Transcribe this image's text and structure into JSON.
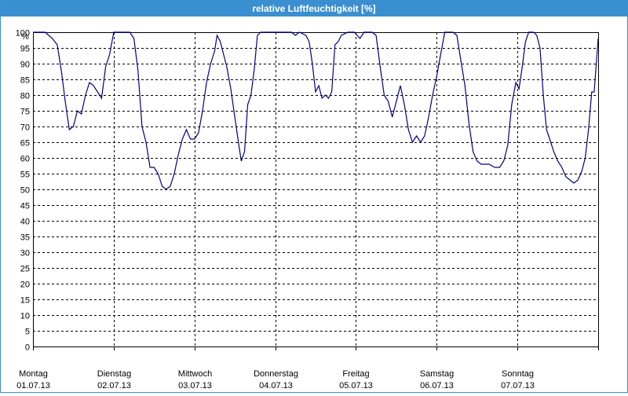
{
  "window": {
    "title": "relative Luftfeuchtigkeit [%]"
  },
  "colors": {
    "titlebar": "#3a8fd0",
    "line": "#00008b",
    "grid": "#000000"
  },
  "chart_data": {
    "type": "line",
    "title": "relative Luftfeuchtigkeit [%]",
    "ylabel": "%",
    "xlabel": "",
    "ylim": [
      0,
      100
    ],
    "y_ticks": [
      0,
      5,
      10,
      15,
      20,
      25,
      30,
      35,
      40,
      45,
      50,
      55,
      60,
      65,
      70,
      75,
      80,
      85,
      90,
      95,
      100
    ],
    "xlim_days": [
      0,
      7
    ],
    "x_tick_labels": [
      {
        "day": "Montag",
        "date": "01.07.13"
      },
      {
        "day": "Dienstag",
        "date": "02.07.13"
      },
      {
        "day": "Mittwoch",
        "date": "03.07.13"
      },
      {
        "day": "Donnerstag",
        "date": "04.07.13"
      },
      {
        "day": "Freitag",
        "date": "05.07.13"
      },
      {
        "day": "Samstag",
        "date": "06.07.13"
      },
      {
        "day": "Sonntag",
        "date": "07.07.13"
      }
    ],
    "grid": true,
    "series": [
      {
        "points": [
          [
            0.0,
            100
          ],
          [
            0.15,
            100
          ],
          [
            0.24,
            98
          ],
          [
            0.3,
            96
          ],
          [
            0.35,
            88
          ],
          [
            0.4,
            78
          ],
          [
            0.45,
            69
          ],
          [
            0.5,
            70
          ],
          [
            0.55,
            75
          ],
          [
            0.6,
            74
          ],
          [
            0.65,
            80
          ],
          [
            0.7,
            84
          ],
          [
            0.75,
            83
          ],
          [
            0.8,
            81
          ],
          [
            0.85,
            79
          ],
          [
            0.9,
            89
          ],
          [
            0.95,
            93
          ],
          [
            1.0,
            100
          ],
          [
            1.1,
            100
          ],
          [
            1.2,
            100
          ],
          [
            1.25,
            98
          ],
          [
            1.3,
            88
          ],
          [
            1.35,
            70
          ],
          [
            1.4,
            65
          ],
          [
            1.45,
            57
          ],
          [
            1.5,
            57
          ],
          [
            1.55,
            55
          ],
          [
            1.6,
            51
          ],
          [
            1.65,
            50
          ],
          [
            1.7,
            51
          ],
          [
            1.75,
            55
          ],
          [
            1.8,
            61
          ],
          [
            1.85,
            66
          ],
          [
            1.9,
            69
          ],
          [
            1.95,
            66
          ],
          [
            2.0,
            66
          ],
          [
            2.05,
            68
          ],
          [
            2.1,
            75
          ],
          [
            2.15,
            84
          ],
          [
            2.2,
            90
          ],
          [
            2.25,
            94
          ],
          [
            2.28,
            99
          ],
          [
            2.32,
            97
          ],
          [
            2.4,
            89
          ],
          [
            2.45,
            82
          ],
          [
            2.5,
            73
          ],
          [
            2.55,
            64
          ],
          [
            2.58,
            59
          ],
          [
            2.62,
            62
          ],
          [
            2.66,
            77
          ],
          [
            2.7,
            80
          ],
          [
            2.74,
            88
          ],
          [
            2.78,
            99
          ],
          [
            2.82,
            100
          ],
          [
            2.9,
            100
          ],
          [
            3.0,
            100
          ],
          [
            3.1,
            100
          ],
          [
            3.2,
            100
          ],
          [
            3.25,
            99
          ],
          [
            3.3,
            100
          ],
          [
            3.38,
            99
          ],
          [
            3.42,
            97
          ],
          [
            3.46,
            90
          ],
          [
            3.5,
            81
          ],
          [
            3.54,
            83
          ],
          [
            3.58,
            79
          ],
          [
            3.62,
            80
          ],
          [
            3.66,
            79
          ],
          [
            3.7,
            81
          ],
          [
            3.74,
            96
          ],
          [
            3.78,
            97
          ],
          [
            3.82,
            99
          ],
          [
            3.9,
            100
          ],
          [
            3.98,
            100
          ],
          [
            4.05,
            98
          ],
          [
            4.1,
            100
          ],
          [
            4.2,
            100
          ],
          [
            4.25,
            99
          ],
          [
            4.3,
            89
          ],
          [
            4.35,
            80
          ],
          [
            4.4,
            78
          ],
          [
            4.45,
            73
          ],
          [
            4.5,
            78
          ],
          [
            4.55,
            83
          ],
          [
            4.6,
            77
          ],
          [
            4.65,
            69
          ],
          [
            4.7,
            65
          ],
          [
            4.75,
            67
          ],
          [
            4.8,
            65
          ],
          [
            4.85,
            67
          ],
          [
            4.9,
            73
          ],
          [
            4.95,
            80
          ],
          [
            5.0,
            86
          ],
          [
            5.05,
            93
          ],
          [
            5.1,
            100
          ],
          [
            5.2,
            100
          ],
          [
            5.25,
            99
          ],
          [
            5.3,
            91
          ],
          [
            5.35,
            83
          ],
          [
            5.4,
            71
          ],
          [
            5.45,
            62
          ],
          [
            5.5,
            59
          ],
          [
            5.55,
            58
          ],
          [
            5.65,
            58
          ],
          [
            5.72,
            57
          ],
          [
            5.78,
            57
          ],
          [
            5.83,
            59
          ],
          [
            5.88,
            64
          ],
          [
            5.93,
            77
          ],
          [
            5.98,
            84
          ],
          [
            6.02,
            82
          ],
          [
            6.06,
            89
          ],
          [
            6.1,
            97
          ],
          [
            6.14,
            100
          ],
          [
            6.2,
            100
          ],
          [
            6.24,
            99
          ],
          [
            6.28,
            95
          ],
          [
            6.32,
            80
          ],
          [
            6.36,
            69
          ],
          [
            6.4,
            66
          ],
          [
            6.45,
            62
          ],
          [
            6.5,
            59
          ],
          [
            6.55,
            57
          ],
          [
            6.6,
            54
          ],
          [
            6.65,
            53
          ],
          [
            6.7,
            52
          ],
          [
            6.75,
            53
          ],
          [
            6.8,
            56
          ],
          [
            6.84,
            60
          ],
          [
            6.88,
            69
          ],
          [
            6.92,
            81
          ],
          [
            6.95,
            81
          ],
          [
            6.98,
            91
          ],
          [
            7.0,
            98
          ]
        ]
      }
    ]
  }
}
